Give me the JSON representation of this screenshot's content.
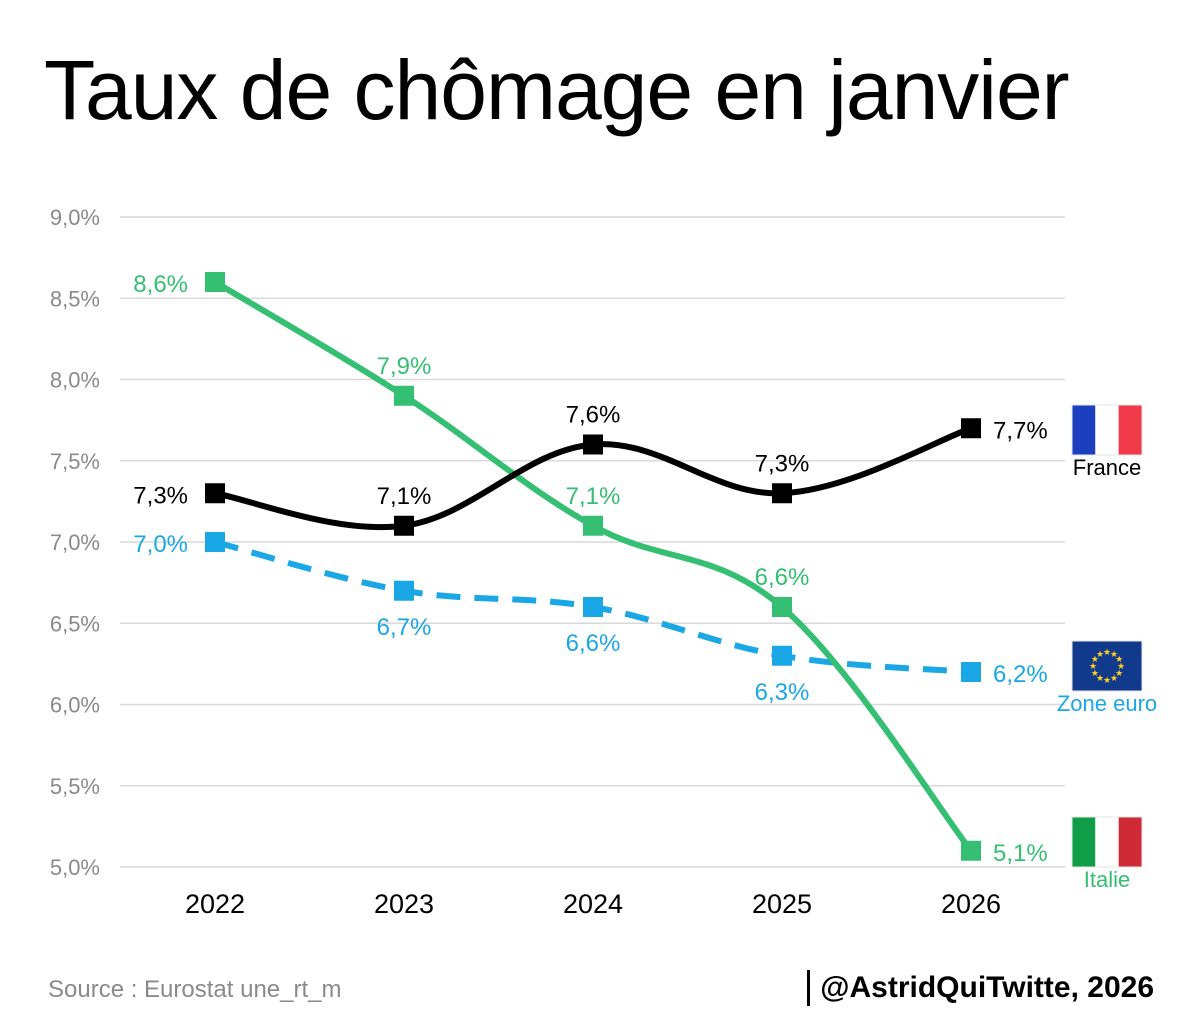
{
  "title": "Taux de chômage en janvier",
  "source": "Source : Eurostat une_rt_m",
  "credit": "@AstridQuiTwitte, 2026",
  "chart_data": {
    "type": "line",
    "title": "Taux de chômage en janvier",
    "xlabel": "",
    "ylabel": "",
    "categories": [
      "2022",
      "2023",
      "2024",
      "2025",
      "2026"
    ],
    "y_ticks": [
      "5,0%",
      "5,5%",
      "6,0%",
      "6,5%",
      "7,0%",
      "7,5%",
      "8,0%",
      "8,5%",
      "9,0%"
    ],
    "ylim": [
      5.0,
      9.0
    ],
    "grid": true,
    "legend": "right (flags)",
    "series": [
      {
        "name": "France",
        "color": "#000000",
        "style": "solid",
        "flag": "france-flag-icon",
        "values": [
          7.3,
          7.1,
          7.6,
          7.3,
          7.7
        ],
        "labels": [
          "7,3%",
          "7,1%",
          "7,6%",
          "7,3%",
          "7,7%"
        ]
      },
      {
        "name": "Zone euro",
        "color": "#1aa7e6",
        "style": "dashed",
        "flag": "eu-flag-icon",
        "values": [
          7.0,
          6.7,
          6.6,
          6.3,
          6.2
        ],
        "labels": [
          "7,0%",
          "6,7%",
          "6,6%",
          "6,3%",
          "6,2%"
        ]
      },
      {
        "name": "Italie",
        "color": "#35bf72",
        "style": "solid",
        "flag": "italy-flag-icon",
        "values": [
          8.6,
          7.9,
          7.1,
          6.6,
          5.1
        ],
        "labels": [
          "8,6%",
          "7,9%",
          "7,1%",
          "6,6%",
          "5,1%"
        ]
      }
    ]
  }
}
